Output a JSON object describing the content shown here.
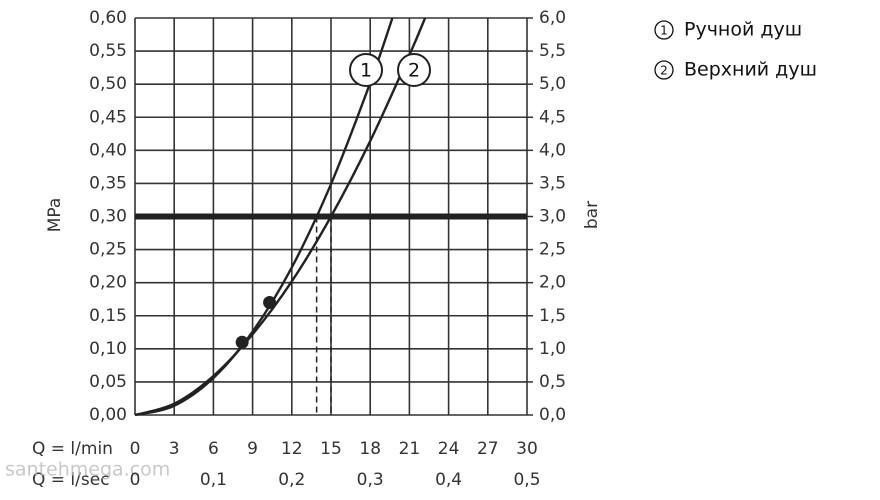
{
  "chart_data": {
    "type": "line",
    "y_label": "MPa",
    "y2_label": "bar",
    "x_label": "Q = l/min",
    "x2_label": "Q = l/sec",
    "watermark": "santehmega.com",
    "color": "#222222",
    "grid": true,
    "xlim": [
      0,
      30
    ],
    "xticks": [
      0,
      3,
      6,
      9,
      12,
      15,
      18,
      21,
      24,
      27,
      30
    ],
    "x2lim": [
      0,
      0.5
    ],
    "x2ticks": [
      0,
      {
        "value": 0.1,
        "label": "0,1"
      },
      {
        "value": 0.2,
        "label": "0,2"
      },
      {
        "value": 0.3,
        "label": "0,3"
      },
      {
        "value": 0.4,
        "label": "0,4"
      },
      {
        "value": 0.5,
        "label": "0,5"
      }
    ],
    "ylim": [
      0,
      0.6
    ],
    "yticks": [
      {
        "value": 0,
        "label": "0,00"
      },
      {
        "value": 0.05,
        "label": "0,05"
      },
      {
        "value": 0.1,
        "label": "0,10"
      },
      {
        "value": 0.15,
        "label": "0,15"
      },
      {
        "value": 0.2,
        "label": "0,20"
      },
      {
        "value": 0.25,
        "label": "0,25"
      },
      {
        "value": 0.3,
        "label": "0,30"
      },
      {
        "value": 0.35,
        "label": "0,35"
      },
      {
        "value": 0.4,
        "label": "0,40"
      },
      {
        "value": 0.45,
        "label": "0,45"
      },
      {
        "value": 0.5,
        "label": "0,50"
      },
      {
        "value": 0.55,
        "label": "0,55"
      },
      {
        "value": 0.6,
        "label": "0,60"
      }
    ],
    "y2lim": [
      0,
      6
    ],
    "y2ticks": [
      {
        "value": 0,
        "label": "0,0"
      },
      {
        "value": 0.5,
        "label": "0,5"
      },
      {
        "value": 1,
        "label": "1,0"
      },
      {
        "value": 1.5,
        "label": "1,5"
      },
      {
        "value": 2,
        "label": "2,0"
      },
      {
        "value": 2.5,
        "label": "2,5"
      },
      {
        "value": 3,
        "label": "3,0"
      },
      {
        "value": 3.5,
        "label": "3,5"
      },
      {
        "value": 4,
        "label": "4,0"
      },
      {
        "value": 4.5,
        "label": "4,5"
      },
      {
        "value": 5,
        "label": "5,0"
      },
      {
        "value": 5.5,
        "label": "5,5"
      },
      {
        "value": 6,
        "label": "6,0"
      }
    ],
    "reference_y": 0.3,
    "drop_lines_x": [
      13.9,
      15
    ],
    "markers": {
      "x": [
        8.2,
        10.3
      ],
      "y": [
        0.11,
        0.17
      ]
    },
    "series": [
      {
        "name": "Ручной душ",
        "label": "1",
        "color": "#222222",
        "x": [
          0,
          3,
          6,
          9,
          12,
          15,
          18,
          19.7
        ],
        "values": [
          0,
          0.014,
          0.056,
          0.126,
          0.223,
          0.349,
          0.502,
          0.6
        ]
      },
      {
        "name": "Верхний душ",
        "label": "2",
        "color": "#222222",
        "x": [
          0,
          3,
          6,
          9,
          12,
          15,
          18,
          21,
          22.2
        ],
        "values": [
          0,
          0.017,
          0.059,
          0.122,
          0.202,
          0.3,
          0.414,
          0.544,
          0.6
        ]
      }
    ]
  }
}
